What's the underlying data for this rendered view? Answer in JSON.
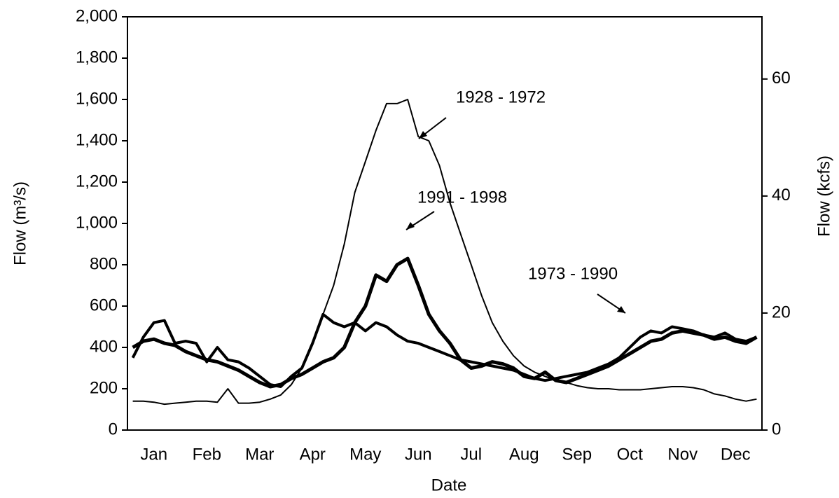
{
  "chart_data": {
    "type": "line",
    "x_label": "Date",
    "y_label": "Flow (m³/s)",
    "y2_label": "Flow (kcfs)",
    "annotations": [
      "1928 - 1972",
      "1991 - 1998",
      "1973 - 1990"
    ],
    "categories": [
      null,
      null,
      "Jan",
      null,
      null,
      null,
      null,
      "Feb",
      null,
      null,
      null,
      null,
      "Mar",
      null,
      null,
      null,
      null,
      "Apr",
      null,
      null,
      null,
      null,
      "May",
      null,
      null,
      null,
      null,
      "Jun",
      null,
      null,
      null,
      null,
      "Jul",
      null,
      null,
      null,
      null,
      "Aug",
      null,
      null,
      null,
      null,
      "Sep",
      null,
      null,
      null,
      null,
      "Oct",
      null,
      null,
      null,
      null,
      "Nov",
      null,
      null,
      null,
      null,
      "Dec",
      null,
      null
    ],
    "series": [
      {
        "name": "1928 - 1972",
        "color": "#000000",
        "values": [
          140,
          140,
          135,
          125,
          130,
          135,
          140,
          140,
          135,
          200,
          130,
          130,
          135,
          150,
          170,
          220,
          300,
          420,
          560,
          700,
          900,
          1150,
          1300,
          1450,
          1580,
          1580,
          1600,
          1420,
          1400,
          1280,
          1100,
          950,
          800,
          650,
          520,
          430,
          360,
          310,
          280,
          260,
          240,
          230,
          215,
          205,
          200,
          200,
          195,
          195,
          195,
          200,
          205,
          210,
          210,
          205,
          195,
          175,
          165,
          150,
          140,
          150
        ]
      },
      {
        "name": "1973 - 1990",
        "color": "#000000",
        "values": [
          350,
          450,
          520,
          530,
          420,
          430,
          420,
          330,
          400,
          340,
          330,
          300,
          260,
          220,
          210,
          260,
          300,
          420,
          560,
          520,
          500,
          520,
          480,
          520,
          500,
          460,
          430,
          420,
          400,
          380,
          360,
          340,
          330,
          320,
          310,
          300,
          290,
          270,
          250,
          240,
          250,
          260,
          270,
          280,
          300,
          320,
          350,
          400,
          450,
          480,
          470,
          500,
          490,
          480,
          460,
          450,
          470,
          440,
          430,
          450
        ]
      },
      {
        "name": "1991 - 1998",
        "color": "#000000",
        "values": [
          400,
          430,
          440,
          420,
          410,
          380,
          360,
          340,
          330,
          310,
          290,
          260,
          230,
          210,
          220,
          250,
          270,
          300,
          330,
          350,
          400,
          520,
          600,
          750,
          720,
          800,
          830,
          700,
          560,
          480,
          420,
          340,
          300,
          310,
          330,
          320,
          300,
          260,
          250,
          280,
          240,
          230,
          250,
          270,
          290,
          310,
          340,
          370,
          400,
          430,
          440,
          470,
          480,
          470,
          460,
          440,
          450,
          430,
          420,
          450
        ]
      }
    ],
    "ylim": [
      0,
      2000
    ],
    "yticks": [
      0,
      200,
      400,
      600,
      800,
      {
        "value": 1000,
        "label": "1,000"
      },
      {
        "value": 1200,
        "label": "1,200"
      },
      {
        "value": 1400,
        "label": "1,400"
      },
      {
        "value": 1600,
        "label": "1,600"
      },
      {
        "value": 1800,
        "label": "1,800"
      },
      {
        "value": 2000,
        "label": "2,000"
      }
    ],
    "y2lim": [
      0,
      70.63
    ],
    "y2ticks": [
      0,
      20,
      40,
      60
    ],
    "grid": false
  }
}
